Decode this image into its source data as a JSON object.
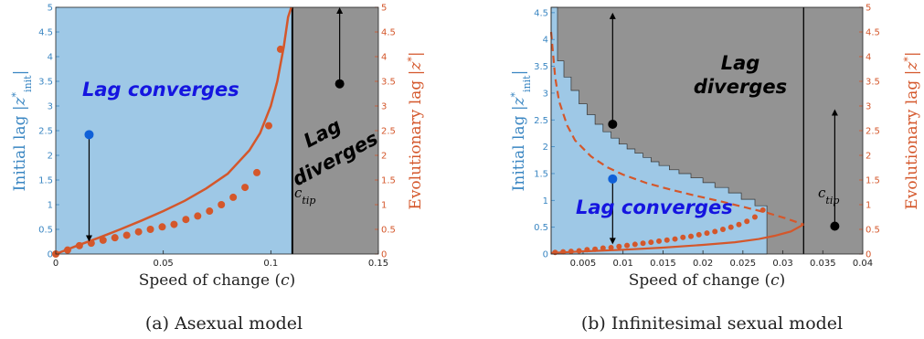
{
  "colors": {
    "converge_fill": "#9ec8e6",
    "diverge_fill": "#939393",
    "left_axis": "#3a86c2",
    "right_axis": "#d4572b",
    "curve": "#d4572b",
    "label_blue": "#1515e0",
    "label_black": "#000000"
  },
  "chart_data": [
    {
      "type": "scatter",
      "caption": "(a) Asexual model",
      "xlabel": "Speed of change (c)",
      "ylabel_left": "Initial lag |z*init|",
      "ylabel_right": "Evolutionary lag |z*|",
      "xlim": [
        0,
        0.15
      ],
      "ylim": [
        0,
        5
      ],
      "xticks": [
        "0",
        "0.05",
        "0.1",
        "0.15"
      ],
      "xtick_values": [
        0,
        0.05,
        0.1,
        0.15
      ],
      "yticks": [
        "0",
        "0.5",
        "1",
        "1.5",
        "2",
        "2.5",
        "3",
        "3.5",
        "4",
        "4.5",
        "5"
      ],
      "ytick_values": [
        0,
        0.5,
        1,
        1.5,
        2,
        2.5,
        3,
        3.5,
        4,
        4.5,
        5
      ],
      "ctip_value": 0.11,
      "ctip_label": "c_tip",
      "region_labels": {
        "converge": "Lag converges",
        "diverge_1": "Lag",
        "diverge_2": "diverges"
      },
      "curve": {
        "x": [
          0,
          0.01,
          0.02,
          0.03,
          0.04,
          0.05,
          0.06,
          0.07,
          0.08,
          0.09,
          0.095,
          0.1,
          0.103,
          0.106,
          0.108,
          0.1095
        ],
        "y": [
          0,
          0.17,
          0.33,
          0.5,
          0.68,
          0.87,
          1.08,
          1.33,
          1.63,
          2.1,
          2.45,
          3.0,
          3.5,
          4.2,
          4.8,
          5.0
        ]
      },
      "points": {
        "x": [
          0,
          0.0055,
          0.011,
          0.0165,
          0.022,
          0.0275,
          0.033,
          0.0385,
          0.044,
          0.0495,
          0.055,
          0.0605,
          0.066,
          0.0715,
          0.077,
          0.0825,
          0.088,
          0.0935,
          0.099,
          0.1045
        ],
        "y": [
          0,
          0.08,
          0.17,
          0.22,
          0.28,
          0.33,
          0.38,
          0.45,
          0.5,
          0.55,
          0.6,
          0.7,
          0.77,
          0.87,
          1.0,
          1.15,
          1.35,
          1.65,
          2.6,
          4.15
        ]
      },
      "markers": [
        {
          "x": 0.0155,
          "y": 2.42,
          "color": "blue",
          "arrow_to_y": 0.25
        },
        {
          "x": 0.132,
          "y": 3.45,
          "color": "black",
          "arrow_to_y": 5.0
        }
      ]
    },
    {
      "type": "scatter",
      "caption": "(b) Infinitesimal sexual model",
      "xlabel": "Speed of change (c)",
      "ylabel_left": "Initial lag |z*init|",
      "ylabel_right": "Evolutionary lag |z*|",
      "xlim": [
        0.001,
        0.04
      ],
      "ylim": [
        0,
        4.6
      ],
      "xticks": [
        "0.005",
        "0.01",
        "0.015",
        "0.02",
        "0.025",
        "0.03",
        "0.035",
        "0.04"
      ],
      "xtick_values": [
        0.005,
        0.01,
        0.015,
        0.02,
        0.025,
        0.03,
        0.035,
        0.04
      ],
      "yticks_left": [
        "0",
        "0.5",
        "1",
        "1.5",
        "2",
        "2.5",
        "3",
        "3.5",
        "4",
        "4.5"
      ],
      "ytick_left_values": [
        0,
        0.5,
        1,
        1.5,
        2,
        2.5,
        3,
        3.5,
        4,
        4.5
      ],
      "yticks_right": [
        "0",
        "0.5",
        "1",
        "1.5",
        "2",
        "2.5",
        "3",
        "3.5",
        "4",
        "4.5",
        "5"
      ],
      "ytick_right_values": [
        0,
        0.46,
        0.92,
        1.38,
        1.84,
        2.3,
        2.76,
        3.22,
        3.68,
        4.14,
        4.6
      ],
      "ctip_value": 0.0326,
      "ctip_label": "c_tip",
      "region_labels": {
        "converge": "Lag converges",
        "diverge_1": "Lag",
        "diverge_2": "diverges"
      },
      "boundary": {
        "x": [
          0.001,
          0.0018,
          0.0018,
          0.0026,
          0.0026,
          0.0035,
          0.0035,
          0.0045,
          0.0045,
          0.0055,
          0.0055,
          0.0065,
          0.0065,
          0.0075,
          0.0075,
          0.0085,
          0.0085,
          0.0095,
          0.0095,
          0.0105,
          0.0105,
          0.0115,
          0.0115,
          0.0125,
          0.0125,
          0.0135,
          0.0135,
          0.0145,
          0.0145,
          0.0158,
          0.0158,
          0.017,
          0.017,
          0.0185,
          0.0185,
          0.02,
          0.02,
          0.0215,
          0.0215,
          0.0232,
          0.0232,
          0.0248,
          0.0248,
          0.0265,
          0.0265,
          0.028,
          0.028
        ],
        "y": [
          4.6,
          4.6,
          3.6,
          3.6,
          3.3,
          3.3,
          3.05,
          3.05,
          2.8,
          2.8,
          2.6,
          2.6,
          2.42,
          2.42,
          2.28,
          2.28,
          2.16,
          2.16,
          2.05,
          2.05,
          1.96,
          1.96,
          1.88,
          1.88,
          1.8,
          1.8,
          1.72,
          1.72,
          1.65,
          1.65,
          1.57,
          1.57,
          1.5,
          1.5,
          1.42,
          1.42,
          1.33,
          1.33,
          1.24,
          1.24,
          1.14,
          1.14,
          1.02,
          1.02,
          0.9,
          0.9,
          0
        ]
      },
      "dashed_curve": {
        "x": [
          0.001,
          0.0015,
          0.002,
          0.003,
          0.004,
          0.006,
          0.008,
          0.01,
          0.013,
          0.016,
          0.019,
          0.022,
          0.025,
          0.028,
          0.0305,
          0.0326
        ],
        "y": [
          4.14,
          3.3,
          2.85,
          2.4,
          2.12,
          1.82,
          1.62,
          1.48,
          1.32,
          1.2,
          1.09,
          0.99,
          0.88,
          0.77,
          0.66,
          0.55
        ]
      },
      "solid_curve": {
        "x": [
          0.001,
          0.005,
          0.01,
          0.015,
          0.02,
          0.024,
          0.027,
          0.029,
          0.031,
          0.0326
        ],
        "y": [
          0.02,
          0.05,
          0.08,
          0.12,
          0.17,
          0.22,
          0.28,
          0.34,
          0.42,
          0.55
        ]
      },
      "points": {
        "x": [
          0.0015,
          0.0025,
          0.0035,
          0.0045,
          0.0055,
          0.0065,
          0.0075,
          0.0085,
          0.0095,
          0.0105,
          0.0115,
          0.0125,
          0.0135,
          0.0145,
          0.0155,
          0.0165,
          0.0175,
          0.0185,
          0.0195,
          0.0205,
          0.0215,
          0.0225,
          0.0235,
          0.0245,
          0.0255,
          0.0265,
          0.0275
        ],
        "y": [
          0.03,
          0.04,
          0.05,
          0.06,
          0.08,
          0.09,
          0.11,
          0.12,
          0.14,
          0.16,
          0.18,
          0.2,
          0.22,
          0.24,
          0.26,
          0.28,
          0.31,
          0.33,
          0.36,
          0.39,
          0.42,
          0.46,
          0.5,
          0.55,
          0.61,
          0.69,
          0.82
        ]
      },
      "markers": [
        {
          "x": 0.0087,
          "y": 2.42,
          "color": "black",
          "arrow_to_y": 4.5
        },
        {
          "x": 0.0087,
          "y": 1.4,
          "color": "blue",
          "arrow_to_y": 0.18
        },
        {
          "x": 0.0365,
          "y": 0.52,
          "color": "black",
          "arrow_to_y": 2.7
        }
      ]
    }
  ]
}
